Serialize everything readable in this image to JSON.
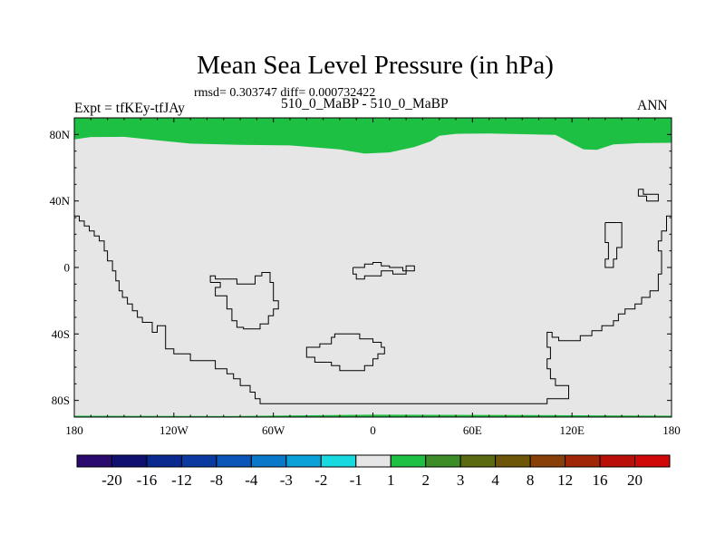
{
  "figure": {
    "title": "Mean Sea Level Pressure (in hPa)",
    "subtitle": "rmsd= 0.303747 diff= 0.000732422",
    "left_label": "Expt = tfKEy-tfJAy",
    "center_label": "510_0_MaBP - 510_0_MaBP",
    "right_label": "ANN"
  },
  "chart_data": {
    "type": "heatmap",
    "map_type": "global cylindrical equidistant contour map",
    "title": "Mean Sea Level Pressure (in hPa)",
    "xlim": [
      -180,
      180
    ],
    "ylim": [
      -90,
      90
    ],
    "x_ticks": [
      {
        "value": -180,
        "label": "180"
      },
      {
        "value": -120,
        "label": "120W"
      },
      {
        "value": -60,
        "label": "60W"
      },
      {
        "value": 0,
        "label": "0"
      },
      {
        "value": 60,
        "label": "60E"
      },
      {
        "value": 120,
        "label": "120E"
      },
      {
        "value": 180,
        "label": "180"
      }
    ],
    "y_ticks": [
      {
        "value": 80,
        "label": "80N"
      },
      {
        "value": 40,
        "label": "40N"
      },
      {
        "value": 0,
        "label": "0"
      },
      {
        "value": -40,
        "label": "40S"
      },
      {
        "value": -80,
        "label": "80S"
      }
    ],
    "background_bin_color": "#e6e6e6",
    "high_bin_color": "#1ec044",
    "north_band_boundary": [
      {
        "lon": -180,
        "lat": 77
      },
      {
        "lon": -170,
        "lat": 78.5
      },
      {
        "lon": -150,
        "lat": 78.6
      },
      {
        "lon": -130,
        "lat": 76.5
      },
      {
        "lon": -110,
        "lat": 74.5
      },
      {
        "lon": -80,
        "lat": 73.8
      },
      {
        "lon": -50,
        "lat": 73.4
      },
      {
        "lon": -20,
        "lat": 71
      },
      {
        "lon": -5,
        "lat": 68.5
      },
      {
        "lon": 10,
        "lat": 69.2
      },
      {
        "lon": 25,
        "lat": 72.5
      },
      {
        "lon": 35,
        "lat": 76
      },
      {
        "lon": 40,
        "lat": 79.2
      },
      {
        "lon": 50,
        "lat": 80.4
      },
      {
        "lon": 70,
        "lat": 80.6
      },
      {
        "lon": 90,
        "lat": 80.2
      },
      {
        "lon": 110,
        "lat": 79.8
      },
      {
        "lon": 120,
        "lat": 74.5
      },
      {
        "lon": 127,
        "lat": 71
      },
      {
        "lon": 135,
        "lat": 70.8
      },
      {
        "lon": 145,
        "lat": 74
      },
      {
        "lon": 160,
        "lat": 74.8
      },
      {
        "lon": 180,
        "lat": 75
      }
    ],
    "south_band_boundary": [
      {
        "lon": -180,
        "lat": -89.2
      },
      {
        "lon": -90,
        "lat": -89.4
      },
      {
        "lon": 0,
        "lat": -88.6
      },
      {
        "lon": 90,
        "lat": -88.8
      },
      {
        "lon": 180,
        "lat": -89.2
      }
    ],
    "coastlines": [
      [
        {
          "lon": -180,
          "lat": 31
        },
        {
          "lon": -177,
          "lat": 31
        },
        {
          "lon": -177,
          "lat": 28
        },
        {
          "lon": -174,
          "lat": 28
        },
        {
          "lon": -174,
          "lat": 25
        },
        {
          "lon": -171,
          "lat": 25
        },
        {
          "lon": -171,
          "lat": 22
        },
        {
          "lon": -168,
          "lat": 22
        },
        {
          "lon": -168,
          "lat": 19
        },
        {
          "lon": -165,
          "lat": 19
        },
        {
          "lon": -165,
          "lat": 16
        },
        {
          "lon": -162,
          "lat": 16
        },
        {
          "lon": -162,
          "lat": 10
        },
        {
          "lon": -160,
          "lat": 10
        },
        {
          "lon": -160,
          "lat": 4
        },
        {
          "lon": -157,
          "lat": 4
        },
        {
          "lon": -157,
          "lat": -2
        },
        {
          "lon": -155,
          "lat": -2
        },
        {
          "lon": -155,
          "lat": -8
        },
        {
          "lon": -153,
          "lat": -8
        },
        {
          "lon": -153,
          "lat": -14
        },
        {
          "lon": -151,
          "lat": -14
        },
        {
          "lon": -151,
          "lat": -18
        },
        {
          "lon": -148,
          "lat": -18
        },
        {
          "lon": -148,
          "lat": -22
        },
        {
          "lon": -145,
          "lat": -22
        },
        {
          "lon": -145,
          "lat": -26
        },
        {
          "lon": -142,
          "lat": -26
        },
        {
          "lon": -142,
          "lat": -30
        },
        {
          "lon": -139,
          "lat": -30
        },
        {
          "lon": -139,
          "lat": -33
        },
        {
          "lon": -133,
          "lat": -33
        },
        {
          "lon": -133,
          "lat": -39
        },
        {
          "lon": -130,
          "lat": -39
        },
        {
          "lon": -130,
          "lat": -35
        },
        {
          "lon": -125,
          "lat": -35
        },
        {
          "lon": -125,
          "lat": -49
        },
        {
          "lon": -120,
          "lat": -49
        },
        {
          "lon": -120,
          "lat": -52
        },
        {
          "lon": -110,
          "lat": -52
        },
        {
          "lon": -110,
          "lat": -56
        },
        {
          "lon": -95,
          "lat": -56
        },
        {
          "lon": -95,
          "lat": -61
        },
        {
          "lon": -88,
          "lat": -61
        },
        {
          "lon": -88,
          "lat": -64
        },
        {
          "lon": -84,
          "lat": -64
        },
        {
          "lon": -84,
          "lat": -67
        },
        {
          "lon": -80,
          "lat": -67
        },
        {
          "lon": -80,
          "lat": -71
        },
        {
          "lon": -74,
          "lat": -71
        },
        {
          "lon": -74,
          "lat": -75
        },
        {
          "lon": -71,
          "lat": -75
        },
        {
          "lon": -71,
          "lat": -79
        },
        {
          "lon": -68,
          "lat": -79
        },
        {
          "lon": -68,
          "lat": -82
        },
        {
          "lon": 105,
          "lat": -82
        },
        {
          "lon": 105,
          "lat": -79
        },
        {
          "lon": 118,
          "lat": -79
        },
        {
          "lon": 118,
          "lat": -71
        },
        {
          "lon": 110,
          "lat": -71
        },
        {
          "lon": 110,
          "lat": -67
        },
        {
          "lon": 107,
          "lat": -67
        },
        {
          "lon": 107,
          "lat": -61
        },
        {
          "lon": 105,
          "lat": -61
        },
        {
          "lon": 105,
          "lat": -55
        },
        {
          "lon": 107,
          "lat": -55
        },
        {
          "lon": 107,
          "lat": -48
        },
        {
          "lon": 105,
          "lat": -48
        },
        {
          "lon": 105,
          "lat": -39
        },
        {
          "lon": 108,
          "lat": -39
        },
        {
          "lon": 108,
          "lat": -42
        },
        {
          "lon": 112,
          "lat": -42
        },
        {
          "lon": 112,
          "lat": -44
        },
        {
          "lon": 125,
          "lat": -44
        },
        {
          "lon": 125,
          "lat": -41
        },
        {
          "lon": 132,
          "lat": -41
        },
        {
          "lon": 132,
          "lat": -38
        },
        {
          "lon": 138,
          "lat": -38
        },
        {
          "lon": 138,
          "lat": -35
        },
        {
          "lon": 145,
          "lat": -35
        },
        {
          "lon": 145,
          "lat": -32
        },
        {
          "lon": 148,
          "lat": -32
        },
        {
          "lon": 148,
          "lat": -28
        },
        {
          "lon": 152,
          "lat": -28
        },
        {
          "lon": 152,
          "lat": -25
        },
        {
          "lon": 158,
          "lat": -25
        },
        {
          "lon": 158,
          "lat": -22
        },
        {
          "lon": 162,
          "lat": -22
        },
        {
          "lon": 162,
          "lat": -18
        },
        {
          "lon": 167,
          "lat": -18
        },
        {
          "lon": 167,
          "lat": -14
        },
        {
          "lon": 172,
          "lat": -14
        },
        {
          "lon": 172,
          "lat": -4
        },
        {
          "lon": 174,
          "lat": -4
        },
        {
          "lon": 174,
          "lat": 10
        },
        {
          "lon": 172,
          "lat": 10
        },
        {
          "lon": 172,
          "lat": 16
        },
        {
          "lon": 174,
          "lat": 16
        },
        {
          "lon": 174,
          "lat": 22
        },
        {
          "lon": 177,
          "lat": 22
        },
        {
          "lon": 177,
          "lat": 31
        },
        {
          "lon": 180,
          "lat": 31
        }
      ],
      [
        {
          "lon": -98,
          "lat": -9
        },
        {
          "lon": -92,
          "lat": -9
        },
        {
          "lon": -92,
          "lat": -12
        },
        {
          "lon": -95,
          "lat": -12
        },
        {
          "lon": -95,
          "lat": -17
        },
        {
          "lon": -88,
          "lat": -17
        },
        {
          "lon": -88,
          "lat": -25
        },
        {
          "lon": -85,
          "lat": -25
        },
        {
          "lon": -85,
          "lat": -32
        },
        {
          "lon": -82,
          "lat": -32
        },
        {
          "lon": -82,
          "lat": -36
        },
        {
          "lon": -78,
          "lat": -36
        },
        {
          "lon": -78,
          "lat": -37
        },
        {
          "lon": -68,
          "lat": -37
        },
        {
          "lon": -68,
          "lat": -34
        },
        {
          "lon": -63,
          "lat": -34
        },
        {
          "lon": -63,
          "lat": -29
        },
        {
          "lon": -60,
          "lat": -29
        },
        {
          "lon": -60,
          "lat": -25
        },
        {
          "lon": -57,
          "lat": -25
        },
        {
          "lon": -57,
          "lat": -20
        },
        {
          "lon": -60,
          "lat": -20
        },
        {
          "lon": -60,
          "lat": -9
        },
        {
          "lon": -62,
          "lat": -9
        },
        {
          "lon": -62,
          "lat": -3
        },
        {
          "lon": -67,
          "lat": -3
        },
        {
          "lon": -67,
          "lat": -5
        },
        {
          "lon": -71,
          "lat": -5
        },
        {
          "lon": -71,
          "lat": -10
        },
        {
          "lon": -82,
          "lat": -10
        },
        {
          "lon": -82,
          "lat": -7
        },
        {
          "lon": -95,
          "lat": -7
        },
        {
          "lon": -95,
          "lat": -5
        },
        {
          "lon": -98,
          "lat": -5
        },
        {
          "lon": -98,
          "lat": -9
        }
      ],
      [
        {
          "lon": -12,
          "lat": 0
        },
        {
          "lon": -5,
          "lat": 0
        },
        {
          "lon": -5,
          "lat": 2
        },
        {
          "lon": 0,
          "lat": 2
        },
        {
          "lon": 0,
          "lat": 3
        },
        {
          "lon": 5,
          "lat": 3
        },
        {
          "lon": 5,
          "lat": 1
        },
        {
          "lon": 10,
          "lat": 1
        },
        {
          "lon": 10,
          "lat": 0
        },
        {
          "lon": 18,
          "lat": 0
        },
        {
          "lon": 18,
          "lat": -2
        },
        {
          "lon": 20,
          "lat": -2
        },
        {
          "lon": 20,
          "lat": 1
        },
        {
          "lon": 25,
          "lat": 1
        },
        {
          "lon": 25,
          "lat": -2
        },
        {
          "lon": 20,
          "lat": -2
        },
        {
          "lon": 20,
          "lat": -4
        },
        {
          "lon": 12,
          "lat": -4
        },
        {
          "lon": 12,
          "lat": -2
        },
        {
          "lon": 5,
          "lat": -2
        },
        {
          "lon": 5,
          "lat": -5
        },
        {
          "lon": -5,
          "lat": -5
        },
        {
          "lon": -5,
          "lat": -7
        },
        {
          "lon": -10,
          "lat": -7
        },
        {
          "lon": -10,
          "lat": -4
        },
        {
          "lon": -12,
          "lat": -4
        },
        {
          "lon": -12,
          "lat": 0
        }
      ],
      [
        {
          "lon": -38,
          "lat": -48
        },
        {
          "lon": -32,
          "lat": -48
        },
        {
          "lon": -32,
          "lat": -46
        },
        {
          "lon": -25,
          "lat": -46
        },
        {
          "lon": -25,
          "lat": -42
        },
        {
          "lon": -23,
          "lat": -42
        },
        {
          "lon": -23,
          "lat": -40
        },
        {
          "lon": -8,
          "lat": -40
        },
        {
          "lon": -8,
          "lat": -43
        },
        {
          "lon": 0,
          "lat": -43
        },
        {
          "lon": 0,
          "lat": -45
        },
        {
          "lon": 5,
          "lat": -45
        },
        {
          "lon": 5,
          "lat": -48
        },
        {
          "lon": 7,
          "lat": -48
        },
        {
          "lon": 7,
          "lat": -52
        },
        {
          "lon": 3,
          "lat": -52
        },
        {
          "lon": 3,
          "lat": -55
        },
        {
          "lon": 0,
          "lat": -55
        },
        {
          "lon": 0,
          "lat": -59
        },
        {
          "lon": -5,
          "lat": -59
        },
        {
          "lon": -5,
          "lat": -62
        },
        {
          "lon": -20,
          "lat": -62
        },
        {
          "lon": -20,
          "lat": -59
        },
        {
          "lon": -25,
          "lat": -59
        },
        {
          "lon": -25,
          "lat": -57
        },
        {
          "lon": -35,
          "lat": -57
        },
        {
          "lon": -35,
          "lat": -54
        },
        {
          "lon": -40,
          "lat": -54
        },
        {
          "lon": -40,
          "lat": -48
        },
        {
          "lon": -38,
          "lat": -48
        }
      ],
      [
        {
          "lon": 140,
          "lat": 27
        },
        {
          "lon": 150,
          "lat": 27
        },
        {
          "lon": 150,
          "lat": 12
        },
        {
          "lon": 147,
          "lat": 12
        },
        {
          "lon": 147,
          "lat": 5
        },
        {
          "lon": 145,
          "lat": 5
        },
        {
          "lon": 145,
          "lat": 0
        },
        {
          "lon": 140,
          "lat": 0
        },
        {
          "lon": 140,
          "lat": 5
        },
        {
          "lon": 142,
          "lat": 5
        },
        {
          "lon": 142,
          "lat": 15
        },
        {
          "lon": 140,
          "lat": 15
        },
        {
          "lon": 140,
          "lat": 27
        }
      ],
      [
        {
          "lon": 160,
          "lat": 47
        },
        {
          "lon": 163,
          "lat": 47
        },
        {
          "lon": 163,
          "lat": 44
        },
        {
          "lon": 172,
          "lat": 44
        },
        {
          "lon": 172,
          "lat": 40
        },
        {
          "lon": 165,
          "lat": 40
        },
        {
          "lon": 165,
          "lat": 43
        },
        {
          "lon": 160,
          "lat": 43
        },
        {
          "lon": 160,
          "lat": 47
        }
      ]
    ],
    "colorbar": {
      "levels": [
        "-20",
        "-16",
        "-12",
        "-8",
        "-4",
        "-3",
        "-2",
        "-1",
        "1",
        "2",
        "3",
        "4",
        "8",
        "12",
        "16",
        "20"
      ],
      "colors": [
        "#2a0a6e",
        "#101070",
        "#0a2a90",
        "#0a3aa0",
        "#0a55b8",
        "#0a78c8",
        "#0aa0d8",
        "#18d8e0",
        "#e6e6e6",
        "#1ec044",
        "#3c8c28",
        "#5a6a10",
        "#6e5608",
        "#884008",
        "#a02808",
        "#b81008",
        "#d00808"
      ]
    }
  }
}
